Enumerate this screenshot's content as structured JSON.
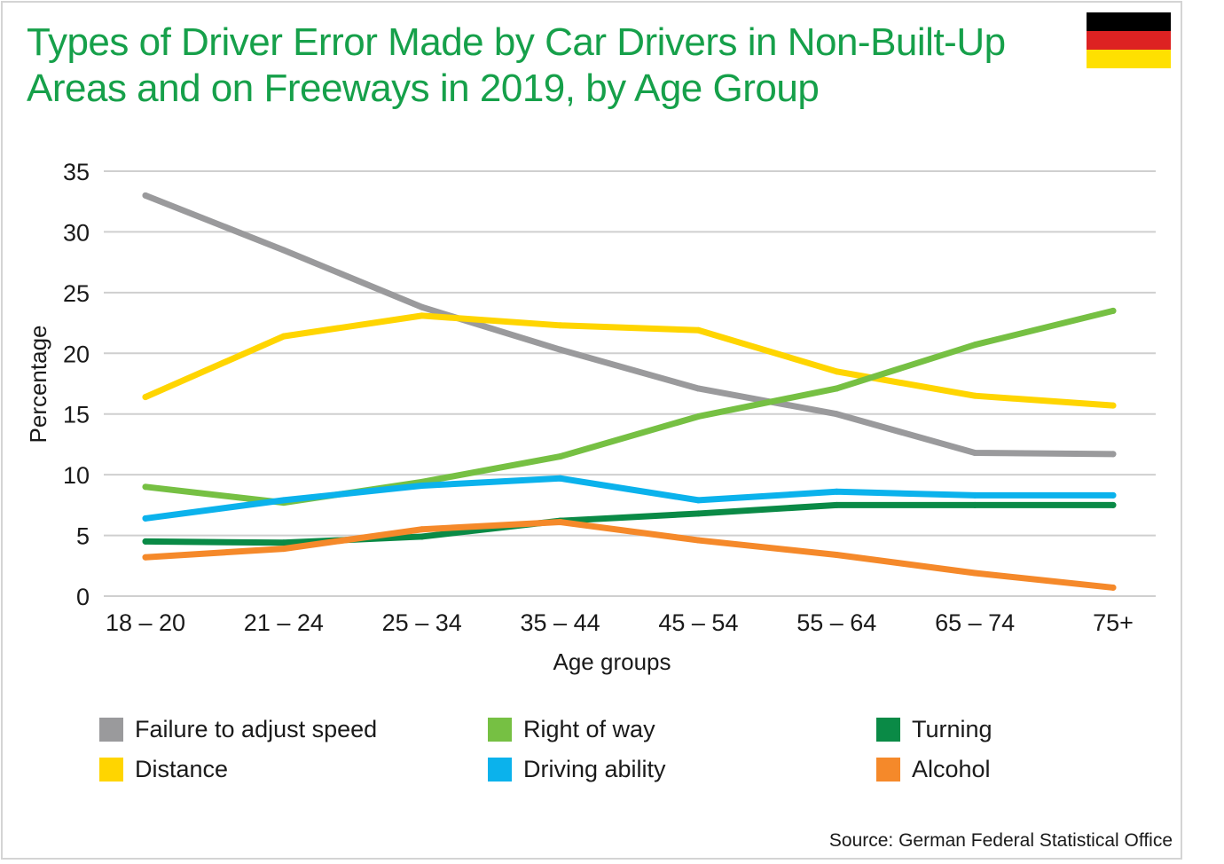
{
  "header": {
    "title_line1": "Types of Driver Error Made by Car Drivers in Non-Built-Up",
    "title_line2": "Areas and on Freeways in 2019, by Age Group",
    "flag_colors": [
      "#000000",
      "#dd2222",
      "#ffe000"
    ]
  },
  "chart_data": {
    "type": "line",
    "title": "Types of Driver Error Made by Car Drivers in Non-Built-Up Areas and on Freeways in 2019, by Age Group",
    "xlabel": "Age groups",
    "ylabel": "Percentage",
    "ylim": [
      0,
      35
    ],
    "yticks": [
      0,
      5,
      10,
      15,
      20,
      25,
      30,
      35
    ],
    "grid": true,
    "legend_position": "bottom",
    "categories": [
      "18 – 20",
      "21 – 24",
      "25 – 34",
      "35 – 44",
      "45 – 54",
      "55 – 64",
      "65 – 74",
      "75+"
    ],
    "series": [
      {
        "name": "Failure to adjust speed",
        "color": "#9a9a9c",
        "values": [
          33.0,
          28.5,
          23.8,
          20.3,
          17.1,
          15.0,
          11.8,
          11.7
        ]
      },
      {
        "name": "Distance",
        "color": "#ffd500",
        "values": [
          16.4,
          21.4,
          23.1,
          22.3,
          21.9,
          18.5,
          16.5,
          15.7
        ]
      },
      {
        "name": "Right of way",
        "color": "#76c043",
        "values": [
          9.0,
          7.7,
          9.4,
          11.5,
          14.8,
          17.1,
          20.7,
          23.5
        ]
      },
      {
        "name": "Driving ability",
        "color": "#0bb2ec",
        "values": [
          6.4,
          7.9,
          9.1,
          9.7,
          7.9,
          8.6,
          8.3,
          8.3
        ]
      },
      {
        "name": "Turning",
        "color": "#0a8a46",
        "values": [
          4.5,
          4.4,
          4.9,
          6.2,
          6.8,
          7.5,
          7.5,
          7.5
        ]
      },
      {
        "name": "Alcohol",
        "color": "#f5892a",
        "values": [
          3.2,
          3.9,
          5.5,
          6.1,
          4.6,
          3.4,
          1.9,
          0.7
        ]
      }
    ]
  },
  "legend": [
    {
      "label": "Failure to adjust speed",
      "color": "#9a9a9c"
    },
    {
      "label": "Right of way",
      "color": "#76c043"
    },
    {
      "label": "Turning",
      "color": "#0a8a46"
    },
    {
      "label": "Distance",
      "color": "#ffd500"
    },
    {
      "label": "Driving ability",
      "color": "#0bb2ec"
    },
    {
      "label": "Alcohol",
      "color": "#f5892a"
    }
  ],
  "source": "Source: German Federal Statistical Office"
}
